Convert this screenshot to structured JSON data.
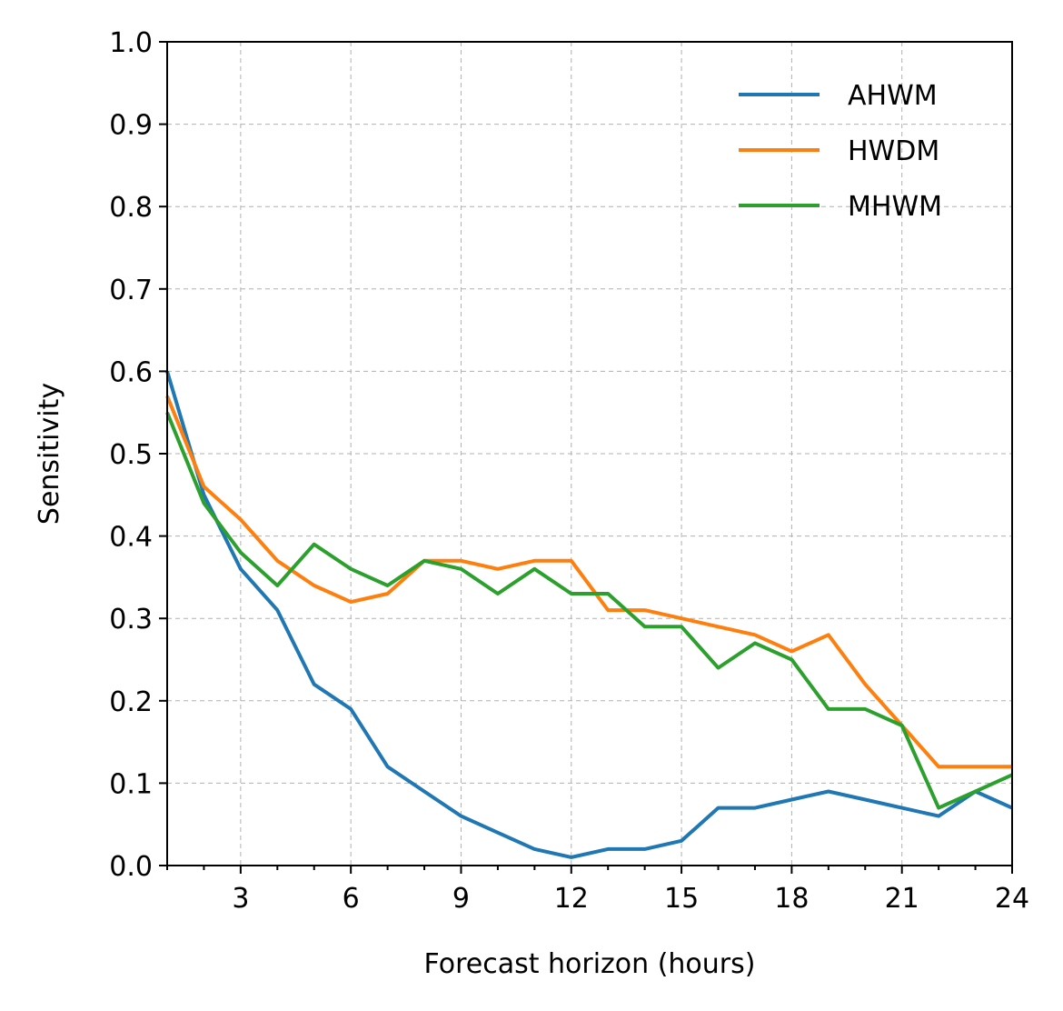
{
  "chart_data": {
    "type": "line",
    "xlabel": "Forecast horizon (hours)",
    "ylabel": "Sensitivity",
    "xlim": [
      1,
      24
    ],
    "ylim": [
      0.0,
      1.0
    ],
    "x_ticks": [
      3,
      6,
      9,
      12,
      15,
      18,
      21,
      24
    ],
    "y_ticks": [
      0.0,
      0.1,
      0.2,
      0.3,
      0.4,
      0.5,
      0.6,
      0.7,
      0.8,
      0.9,
      1.0
    ],
    "y_tick_labels": [
      "0.0",
      "0.1",
      "0.2",
      "0.3",
      "0.4",
      "0.5",
      "0.6",
      "0.7",
      "0.8",
      "0.9",
      "1.0"
    ],
    "grid": true,
    "legend_position": "top-right",
    "x": [
      1,
      2,
      3,
      4,
      5,
      6,
      7,
      8,
      9,
      10,
      11,
      12,
      13,
      14,
      15,
      16,
      17,
      18,
      19,
      20,
      21,
      22,
      23,
      24
    ],
    "series": [
      {
        "name": "AHWM",
        "color": "#1f77b4",
        "values": [
          0.6,
          0.45,
          0.36,
          0.31,
          0.22,
          0.19,
          0.12,
          0.09,
          0.06,
          0.04,
          0.02,
          0.01,
          0.02,
          0.02,
          0.03,
          0.07,
          0.07,
          0.08,
          0.09,
          0.08,
          0.07,
          0.06,
          0.09,
          0.07
        ]
      },
      {
        "name": "HWDM",
        "color": "#ff7f0e",
        "values": [
          0.57,
          0.46,
          0.42,
          0.37,
          0.34,
          0.32,
          0.33,
          0.37,
          0.37,
          0.36,
          0.37,
          0.37,
          0.31,
          0.31,
          0.3,
          0.29,
          0.28,
          0.26,
          0.28,
          0.22,
          0.17,
          0.12,
          0.12,
          0.12
        ]
      },
      {
        "name": "MHWM",
        "color": "#2ca02c",
        "values": [
          0.55,
          0.44,
          0.38,
          0.34,
          0.39,
          0.36,
          0.34,
          0.37,
          0.36,
          0.33,
          0.36,
          0.33,
          0.33,
          0.29,
          0.29,
          0.24,
          0.27,
          0.25,
          0.19,
          0.19,
          0.17,
          0.07,
          0.09,
          0.11
        ]
      }
    ]
  }
}
